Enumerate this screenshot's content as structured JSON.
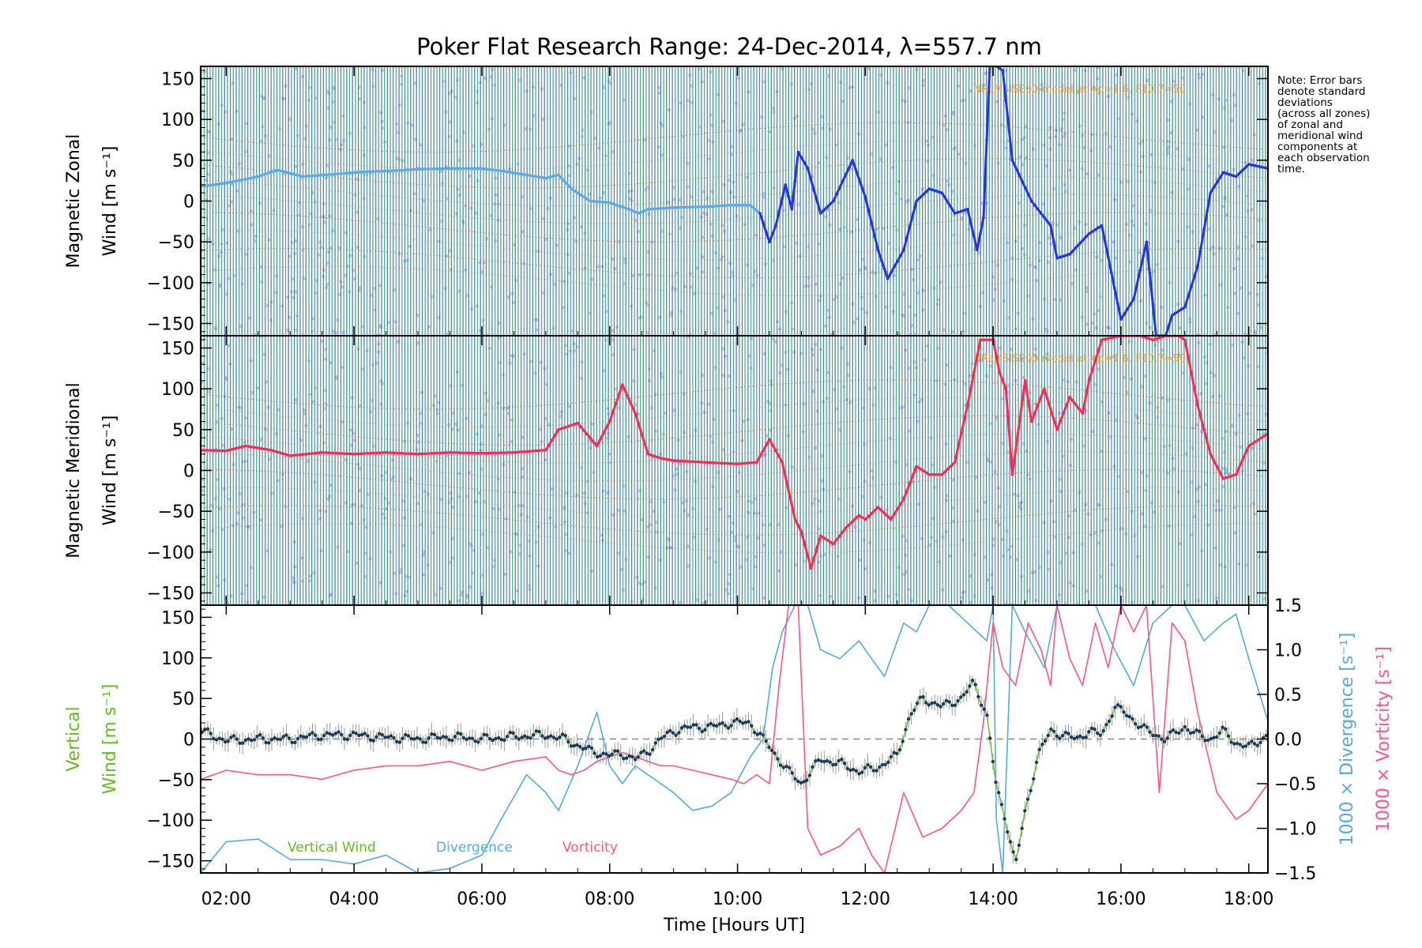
{
  "title": "Poker Flat Research Range: 24-Dec-2014, λ=557.7 nm",
  "note_lines": [
    "Note: Error bars",
    "denote standard",
    "deviations",
    "(across all zones)",
    "of zonal and",
    "meridional wind",
    "components at",
    "each observation",
    "time."
  ],
  "xaxis": {
    "label": "Time [Hours UT]",
    "ticks": [
      "02:00",
      "04:00",
      "06:00",
      "08:00",
      "10:00",
      "12:00",
      "14:00",
      "16:00",
      "18:00"
    ],
    "tick_hours": [
      2,
      4,
      6,
      8,
      10,
      12,
      14,
      16,
      18
    ],
    "range_hours": [
      1.6,
      18.3
    ]
  },
  "panels": {
    "zonal": {
      "ylabel_line1": "Magnetic Zonal",
      "ylabel_line2": "Wind [m s⁻¹]",
      "model_text": "NRLMSISE00 model at Ap=1.6, F10.7=50",
      "yticks": [
        "150",
        "100",
        "50",
        "0",
        "−50",
        "−100",
        "−150"
      ]
    },
    "meridional": {
      "ylabel_line1": "Magnetic Meridional",
      "ylabel_line2": "Wind [m s⁻¹]",
      "model_text": "NRLMSISE00 model at Ap=1.6, F10.7=50",
      "yticks": [
        "150",
        "100",
        "50",
        "0",
        "−50",
        "−100",
        "−150"
      ]
    },
    "vertical": {
      "ylabel_line1": "Vertical",
      "ylabel_line2": "Wind [m s⁻¹]",
      "right_label_div": "1000 × Divergence [s⁻¹]",
      "right_label_vort": "1000 × Vorticity [s⁻¹]",
      "yticks": [
        "150",
        "100",
        "50",
        "0",
        "−50",
        "−100",
        "−150"
      ],
      "right_ticks": [
        "1.5",
        "1.0",
        "0.5",
        "0.0",
        "−0.5",
        "−1.0",
        "−1.5"
      ],
      "legend": [
        "Vertical Wind",
        "Divergence",
        "Vorticity"
      ]
    }
  },
  "colors": {
    "zonal_light": "#5aaaf0",
    "zonal_dark": "#2233ee",
    "meridional": "#ff2a52",
    "vertical": "#66bb22",
    "divergence": "#55aadd",
    "vorticity": "#ff5588",
    "bar_blue": "#3a66a8",
    "bar_green": "#2f9c78",
    "model": "#ff9a1e"
  },
  "chart_data": [
    {
      "type": "line",
      "title": "Poker Flat Research Range: 24-Dec-2014, λ=557.7 nm",
      "ylabel": "Magnetic Zonal Wind [m s⁻¹]",
      "xlabel": "",
      "ylim": [
        -165,
        165
      ],
      "series": [
        {
          "x": [
            1.6,
            2.0,
            2.5,
            2.8,
            3.2,
            3.7,
            4.2,
            4.6,
            5.0,
            5.5,
            6.0,
            6.3,
            6.7,
            7.0,
            7.2,
            7.4,
            7.7,
            8.0,
            8.3,
            8.45,
            8.6,
            9.0,
            9.5,
            9.9,
            10.2,
            10.35
          ],
          "y": [
            18,
            22,
            30,
            38,
            30,
            33,
            36,
            37,
            39,
            40,
            40,
            37,
            32,
            28,
            32,
            15,
            0,
            -2,
            -10,
            -15,
            -10,
            -8,
            -7,
            -5,
            -5,
            -15
          ]
        },
        {
          "x": [
            10.35,
            10.5,
            10.6,
            10.75,
            10.85,
            10.95,
            11.1,
            11.3,
            11.5,
            11.8,
            12.0,
            12.2,
            12.35,
            12.6,
            12.8,
            13.0,
            13.2,
            13.4,
            13.6,
            13.75,
            13.85,
            13.95,
            14.05,
            14.15,
            14.3,
            14.6,
            14.9,
            15.0,
            15.2,
            15.5,
            15.7,
            16.0,
            16.2,
            16.4,
            16.55,
            16.7,
            16.8,
            17.0,
            17.2,
            17.4,
            17.6,
            17.8,
            18.0,
            18.3
          ],
          "y": [
            -15,
            -50,
            -30,
            20,
            -10,
            60,
            40,
            -15,
            0,
            50,
            5,
            -60,
            -95,
            -60,
            0,
            15,
            10,
            -15,
            -10,
            -60,
            -20,
            170,
            165,
            160,
            50,
            0,
            -30,
            -70,
            -65,
            -40,
            -30,
            -145,
            -120,
            -50,
            -165,
            -165,
            -140,
            -130,
            -80,
            10,
            35,
            30,
            45,
            40
          ]
        }
      ]
    },
    {
      "type": "line",
      "ylabel": "Magnetic Meridional Wind [m s⁻¹]",
      "xlabel": "",
      "ylim": [
        -165,
        165
      ],
      "series": [
        {
          "x": [
            1.6,
            2.0,
            2.3,
            2.7,
            3.0,
            3.5,
            4.0,
            4.5,
            5.0,
            5.5,
            6.0,
            6.5,
            7.0,
            7.2,
            7.5,
            7.8,
            8.0,
            8.2,
            8.4,
            8.6,
            8.8,
            9.0,
            9.5,
            10.0,
            10.3,
            10.5,
            10.7,
            10.9,
            11.0,
            11.15,
            11.3,
            11.5,
            11.7,
            11.9,
            12.0,
            12.2,
            12.4,
            12.6,
            12.8,
            13.0,
            13.2,
            13.4,
            13.6,
            13.8,
            14.0,
            14.1,
            14.2,
            14.3,
            14.5,
            14.6,
            14.8,
            15.0,
            15.2,
            15.4,
            15.5,
            15.7,
            16.0,
            16.3,
            16.5,
            16.7,
            16.9,
            17.0,
            17.2,
            17.4,
            17.6,
            17.8,
            18.0,
            18.3
          ],
          "y": [
            25,
            24,
            30,
            25,
            18,
            22,
            20,
            22,
            20,
            22,
            21,
            22,
            25,
            50,
            58,
            30,
            60,
            105,
            70,
            20,
            15,
            12,
            10,
            8,
            10,
            38,
            10,
            -60,
            -75,
            -120,
            -80,
            -90,
            -70,
            -55,
            -60,
            -45,
            -60,
            -35,
            5,
            -5,
            -5,
            10,
            80,
            160,
            160,
            120,
            100,
            -5,
            110,
            60,
            100,
            50,
            90,
            70,
            110,
            160,
            165,
            165,
            160,
            165,
            165,
            160,
            80,
            20,
            -10,
            -5,
            30,
            45
          ]
        }
      ]
    },
    {
      "type": "line",
      "ylabel": "Vertical Wind [m s⁻¹]",
      "xlabel": "Time [Hours UT]",
      "ylim": [
        -165,
        165
      ],
      "y2label": "1000 × Divergence / Vorticity [s⁻¹]",
      "y2lim": [
        -1.5,
        1.5
      ],
      "series": [
        {
          "name": "Vertical Wind",
          "x": [
            1.6,
            2.0,
            2.5,
            3.0,
            3.5,
            4.0,
            4.5,
            5.0,
            5.5,
            6.0,
            6.5,
            7.0,
            7.3,
            7.5,
            7.7,
            8.0,
            8.2,
            8.4,
            8.6,
            8.8,
            9.0,
            9.3,
            9.6,
            9.9,
            10.2,
            10.4,
            10.6,
            10.8,
            11.0,
            11.3,
            11.6,
            11.9,
            12.2,
            12.5,
            12.7,
            12.9,
            13.2,
            13.5,
            13.7,
            13.9,
            14.05,
            14.2,
            14.35,
            14.5,
            14.7,
            14.9,
            15.1,
            15.3,
            15.5,
            15.7,
            15.9,
            16.1,
            16.4,
            16.7,
            17.0,
            17.2,
            17.4,
            17.6,
            17.8,
            18.0,
            18.3
          ],
          "y": [
            10,
            -2,
            0,
            0,
            5,
            5,
            2,
            0,
            3,
            0,
            3,
            5,
            0,
            -8,
            -15,
            -20,
            -18,
            -25,
            -15,
            0,
            10,
            15,
            15,
            20,
            20,
            0,
            -20,
            -40,
            -55,
            -25,
            -30,
            -40,
            -35,
            -20,
            30,
            50,
            40,
            50,
            70,
            30,
            -60,
            -100,
            -155,
            -90,
            -20,
            10,
            5,
            0,
            10,
            5,
            40,
            30,
            10,
            0,
            15,
            5,
            0,
            10,
            -5,
            -10,
            5
          ]
        },
        {
          "name": "Divergence",
          "x": [
            1.6,
            2.0,
            2.5,
            3.0,
            3.5,
            4.0,
            4.5,
            5.0,
            5.5,
            6.0,
            6.3,
            6.7,
            7.0,
            7.2,
            7.5,
            7.8,
            8.0,
            8.2,
            8.4,
            8.6,
            8.8,
            9.0,
            9.3,
            9.6,
            9.9,
            10.2,
            10.4,
            10.55,
            10.7,
            10.9,
            11.1,
            11.3,
            11.6,
            11.9,
            12.1,
            12.3,
            12.6,
            12.8,
            13.0,
            13.3,
            13.6,
            13.9,
            14.0,
            14.05,
            14.15,
            14.3,
            14.5,
            14.8,
            15.0,
            15.3,
            15.6,
            15.9,
            16.2,
            16.5,
            16.8,
            17.0,
            17.3,
            17.6,
            17.8,
            18.0,
            18.3
          ],
          "y": [
            -1.5,
            -1.15,
            -1.12,
            -1.35,
            -1.35,
            -1.4,
            -1.3,
            -1.5,
            -1.45,
            -1.3,
            -0.9,
            -0.4,
            -0.6,
            -0.8,
            -0.3,
            0.3,
            -0.3,
            -0.5,
            -0.3,
            -0.4,
            -0.5,
            -0.6,
            -0.8,
            -0.75,
            -0.6,
            -0.2,
            0.0,
            0.8,
            1.2,
            1.5,
            1.5,
            1.0,
            0.9,
            1.1,
            0.9,
            0.7,
            1.3,
            1.2,
            1.5,
            1.5,
            1.3,
            1.1,
            1.5,
            -0.9,
            -1.5,
            1.5,
            1.2,
            0.8,
            1.5,
            1.5,
            1.5,
            1.0,
            0.6,
            1.3,
            1.5,
            1.5,
            1.1,
            1.3,
            1.4,
            0.9,
            0.2
          ]
        },
        {
          "name": "Vorticity",
          "x": [
            1.6,
            2.0,
            2.5,
            3.0,
            3.5,
            4.0,
            4.5,
            5.0,
            5.5,
            6.0,
            6.5,
            7.0,
            7.2,
            7.4,
            7.6,
            7.8,
            8.0,
            8.2,
            8.4,
            8.6,
            8.8,
            9.0,
            9.3,
            9.6,
            9.9,
            10.1,
            10.3,
            10.5,
            10.65,
            10.8,
            10.95,
            11.1,
            11.3,
            11.6,
            11.9,
            12.1,
            12.3,
            12.6,
            12.9,
            13.2,
            13.5,
            13.7,
            13.85,
            14.0,
            14.15,
            14.35,
            14.55,
            14.75,
            14.9,
            15.0,
            15.2,
            15.4,
            15.6,
            15.8,
            16.0,
            16.2,
            16.4,
            16.6,
            16.8,
            17.0,
            17.2,
            17.5,
            17.8,
            18.0,
            18.3
          ],
          "y": [
            -0.45,
            -0.35,
            -0.4,
            -0.4,
            -0.45,
            -0.35,
            -0.3,
            -0.3,
            -0.25,
            -0.35,
            -0.25,
            -0.2,
            -0.35,
            -0.4,
            -0.35,
            -0.25,
            -0.2,
            -0.15,
            -0.2,
            -0.25,
            -0.3,
            -0.3,
            -0.35,
            -0.4,
            -0.45,
            -0.5,
            -0.4,
            -0.5,
            0.6,
            1.5,
            1.5,
            -1.0,
            -1.3,
            -1.2,
            -1.0,
            -1.3,
            -1.5,
            -0.6,
            -1.1,
            -1.0,
            -0.8,
            -0.6,
            0.2,
            1.3,
            0.8,
            0.6,
            1.3,
            1.0,
            0.6,
            1.5,
            0.9,
            0.6,
            1.3,
            0.8,
            1.5,
            1.2,
            1.5,
            -0.6,
            1.3,
            1.1,
            0.3,
            -0.6,
            -0.9,
            -0.8,
            -0.5
          ]
        }
      ]
    }
  ]
}
